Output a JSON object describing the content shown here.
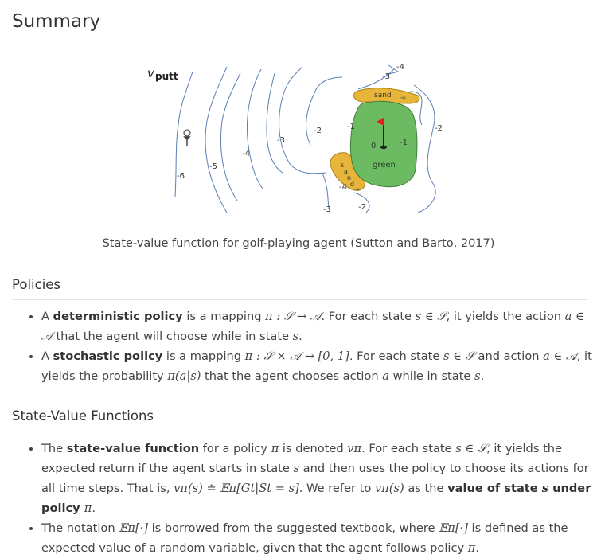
{
  "title": "Summary",
  "figure": {
    "v_label": "v",
    "v_sub": "putt",
    "caption": "State-value function for golf-playing agent (Sutton and Barto, 2017)",
    "labels": {
      "sand_top": "sand",
      "sand_left": "sand",
      "green": "green",
      "neg_inf": "-∞",
      "m6": "-6",
      "m5": "-5",
      "m4": "-4",
      "m3": "-3",
      "m2": "-2",
      "m1": "-1",
      "zero": "0"
    }
  },
  "policies": {
    "heading": "Policies",
    "items": [
      {
        "p1": "A ",
        "b1": "deterministic policy",
        "p2": " is a mapping ",
        "math1": "π : 𝒮 → 𝒜",
        "p3": ". For each state ",
        "math2": "s ∈ 𝒮",
        "p4": ", it yields the action ",
        "math3": "a ∈ 𝒜",
        "p5": " that the agent will choose while in state ",
        "math4": "s",
        "p6": "."
      },
      {
        "p1": "A ",
        "b1": "stochastic policy",
        "p2": " is a mapping ",
        "math1": "π : 𝒮 × 𝒜 → [0, 1]",
        "p3": ". For each state ",
        "math2": "s ∈ 𝒮",
        "p4": " and action ",
        "math3": "a ∈ 𝒜",
        "p5": ", it yields the probability ",
        "math4": "π(a|s)",
        "p6": " that the agent chooses action ",
        "math5": "a",
        "p7": " while in state ",
        "math6": "s",
        "p8": "."
      }
    ]
  },
  "state_value": {
    "heading": "State-Value Functions",
    "items": [
      {
        "p1": "The ",
        "b1": "state-value function",
        "p2": " for a policy ",
        "math1": "π",
        "p3": " is denoted ",
        "math2": "vπ",
        "p4": ". For each state ",
        "math3": "s ∈ 𝒮",
        "p5": ", it yields the expected return if the agent starts in state ",
        "math4": "s",
        "p6": " and then uses the policy to choose its actions for all time steps. That is, ",
        "math5": "vπ(s) ≐ 𝔼π[Gt|St = s]",
        "p7": ". We refer to ",
        "math6": "vπ(s)",
        "p8": " as the ",
        "b2": "value of state ",
        "math7": "s",
        "b3": " under policy ",
        "math8": "π",
        "p9": "."
      },
      {
        "p1": "The notation ",
        "math1": "𝔼π[·]",
        "p2": " is borrowed from the suggested textbook, where ",
        "math2": "𝔼π[·]",
        "p3": " is defined as the expected value of a random variable, given that the agent follows policy ",
        "math3": "π",
        "p4": "."
      }
    ]
  }
}
